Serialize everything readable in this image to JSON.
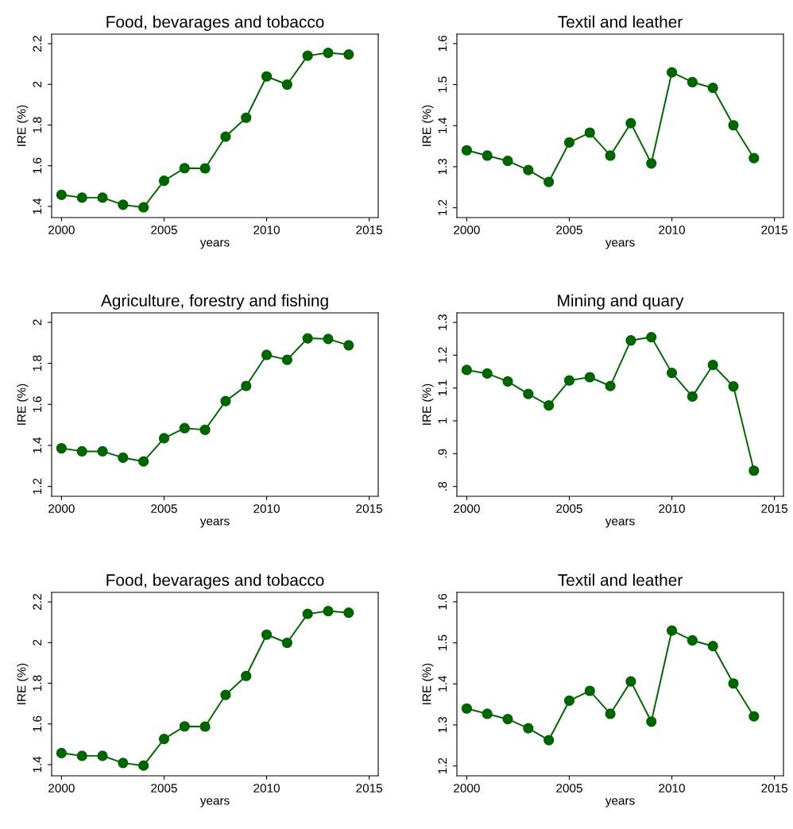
{
  "chart_data": [
    {
      "type": "line",
      "title": "Food, bevarages and tobacco",
      "xlabel": "years",
      "ylabel": "IRE (%)",
      "marker": "circle",
      "x": [
        2000,
        2001,
        2002,
        2003,
        2004,
        2005,
        2006,
        2007,
        2008,
        2009,
        2010,
        2011,
        2012,
        2013,
        2014
      ],
      "series": [
        {
          "color": "#006400",
          "values": [
            1.457,
            1.443,
            1.443,
            1.408,
            1.395,
            1.526,
            1.588,
            1.587,
            1.743,
            1.836,
            2.039,
            1.999,
            2.141,
            2.155,
            2.147
          ]
        }
      ],
      "xlim": [
        1999.52,
        2015.44
      ],
      "xticks": [
        2000,
        2005,
        2010,
        2015
      ],
      "ylim": [
        1.345,
        2.247
      ],
      "yticks": [
        1.4,
        1.6,
        1.8,
        2,
        2.2
      ]
    },
    {
      "type": "line",
      "title": "Textil and leather",
      "xlabel": "years",
      "ylabel": "IRE (%)",
      "marker": "circle",
      "x": [
        2000,
        2001,
        2002,
        2003,
        2004,
        2005,
        2006,
        2007,
        2008,
        2009,
        2010,
        2011,
        2012,
        2013,
        2014
      ],
      "series": [
        {
          "color": "#006400",
          "values": [
            1.34,
            1.327,
            1.314,
            1.292,
            1.263,
            1.359,
            1.383,
            1.327,
            1.406,
            1.308,
            1.53,
            1.506,
            1.492,
            1.401,
            1.321
          ]
        }
      ],
      "xlim": [
        1999.52,
        2015.44
      ],
      "xticks": [
        2000,
        2005,
        2010,
        2015
      ],
      "ylim": [
        1.176,
        1.623
      ],
      "yticks": [
        1.2,
        1.3,
        1.4,
        1.5,
        1.6
      ]
    },
    {
      "type": "line",
      "title": "Agriculture, forestry and fishing",
      "xlabel": "years",
      "ylabel": "IRE (%)",
      "marker": "circle",
      "x": [
        2000,
        2001,
        2002,
        2003,
        2004,
        2005,
        2006,
        2007,
        2008,
        2009,
        2010,
        2011,
        2012,
        2013,
        2014
      ],
      "series": [
        {
          "color": "#006400",
          "values": [
            1.386,
            1.371,
            1.371,
            1.34,
            1.322,
            1.435,
            1.484,
            1.476,
            1.616,
            1.69,
            1.841,
            1.817,
            1.922,
            1.919,
            1.888
          ]
        }
      ],
      "xlim": [
        1999.52,
        2015.44
      ],
      "xticks": [
        2000,
        2005,
        2010,
        2015
      ],
      "ylim": [
        1.152,
        2.046
      ],
      "yticks": [
        1.2,
        1.4,
        1.6,
        1.8,
        2
      ]
    },
    {
      "type": "line",
      "title": "Mining and quary",
      "xlabel": "years",
      "ylabel": "IRE (%)",
      "marker": "circle",
      "x": [
        2000,
        2001,
        2002,
        2003,
        2004,
        2005,
        2006,
        2007,
        2008,
        2009,
        2010,
        2011,
        2012,
        2013,
        2014
      ],
      "series": [
        {
          "color": "#006400",
          "values": [
            1.155,
            1.144,
            1.12,
            1.082,
            1.047,
            1.123,
            1.133,
            1.106,
            1.245,
            1.255,
            1.146,
            1.074,
            1.17,
            1.105,
            0.848
          ]
        }
      ],
      "xlim": [
        1999.52,
        2015.44
      ],
      "xticks": [
        2000,
        2005,
        2010,
        2015
      ],
      "ylim": [
        0.77,
        1.329
      ],
      "yticks": [
        {
          "value": 0.8,
          "label": ".8"
        },
        {
          "value": 0.9,
          "label": ".9"
        },
        1,
        1.1,
        1.2,
        1.3
      ]
    },
    {
      "type": "line",
      "title": "Food, bevarages and tobacco",
      "xlabel": "years",
      "ylabel": "IRE (%)",
      "marker": "circle",
      "x": [
        2000,
        2001,
        2002,
        2003,
        2004,
        2005,
        2006,
        2007,
        2008,
        2009,
        2010,
        2011,
        2012,
        2013,
        2014
      ],
      "series": [
        {
          "color": "#006400",
          "values": [
            1.457,
            1.443,
            1.443,
            1.408,
            1.395,
            1.526,
            1.588,
            1.587,
            1.743,
            1.836,
            2.039,
            1.999,
            2.141,
            2.155,
            2.147
          ]
        }
      ],
      "xlim": [
        1999.52,
        2015.44
      ],
      "xticks": [
        2000,
        2005,
        2010,
        2015
      ],
      "ylim": [
        1.345,
        2.247
      ],
      "yticks": [
        1.4,
        1.6,
        1.8,
        2,
        2.2
      ]
    },
    {
      "type": "line",
      "title": "Textil and leather",
      "xlabel": "years",
      "ylabel": "IRE (%)",
      "marker": "circle",
      "x": [
        2000,
        2001,
        2002,
        2003,
        2004,
        2005,
        2006,
        2007,
        2008,
        2009,
        2010,
        2011,
        2012,
        2013,
        2014
      ],
      "series": [
        {
          "color": "#006400",
          "values": [
            1.34,
            1.327,
            1.314,
            1.292,
            1.263,
            1.359,
            1.383,
            1.327,
            1.406,
            1.308,
            1.53,
            1.506,
            1.492,
            1.401,
            1.321
          ]
        }
      ],
      "xlim": [
        1999.52,
        2015.44
      ],
      "xticks": [
        2000,
        2005,
        2010,
        2015
      ],
      "ylim": [
        1.176,
        1.623
      ],
      "yticks": [
        1.2,
        1.3,
        1.4,
        1.5,
        1.6
      ]
    }
  ]
}
